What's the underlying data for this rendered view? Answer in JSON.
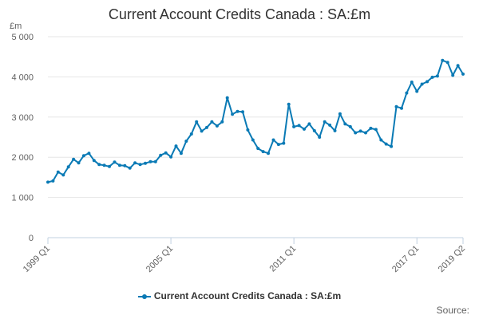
{
  "chart_data": {
    "type": "line",
    "title": "Current Account Credits Canada : SA:£m",
    "unit_label": "£m",
    "source_label": "Source:",
    "y_ticks": [
      "0",
      "1 000",
      "2 000",
      "3 000",
      "4 000",
      "5 000"
    ],
    "ylim": [
      0,
      5000
    ],
    "x_tick_labels": [
      {
        "label": "1999 Q1",
        "index": 0
      },
      {
        "label": "2005 Q1",
        "index": 24
      },
      {
        "label": "2011 Q1",
        "index": 48
      },
      {
        "label": "2017 Q1",
        "index": 72
      },
      {
        "label": "2019 Q2",
        "index": 81
      }
    ],
    "grid": "horizontal",
    "legend_position": "bottom",
    "color": "#0a7ab5",
    "series": [
      {
        "name": "Current Account Credits Canada : SA:£m",
        "x": [
          "1999 Q1",
          "1999 Q2",
          "1999 Q3",
          "1999 Q4",
          "2000 Q1",
          "2000 Q2",
          "2000 Q3",
          "2000 Q4",
          "2001 Q1",
          "2001 Q2",
          "2001 Q3",
          "2001 Q4",
          "2002 Q1",
          "2002 Q2",
          "2002 Q3",
          "2002 Q4",
          "2003 Q1",
          "2003 Q2",
          "2003 Q3",
          "2003 Q4",
          "2004 Q1",
          "2004 Q2",
          "2004 Q3",
          "2004 Q4",
          "2005 Q1",
          "2005 Q2",
          "2005 Q3",
          "2005 Q4",
          "2006 Q1",
          "2006 Q2",
          "2006 Q3",
          "2006 Q4",
          "2007 Q1",
          "2007 Q2",
          "2007 Q3",
          "2007 Q4",
          "2008 Q1",
          "2008 Q2",
          "2008 Q3",
          "2008 Q4",
          "2009 Q1",
          "2009 Q2",
          "2009 Q3",
          "2009 Q4",
          "2010 Q1",
          "2010 Q2",
          "2010 Q3",
          "2010 Q4",
          "2011 Q1",
          "2011 Q2",
          "2011 Q3",
          "2011 Q4",
          "2012 Q1",
          "2012 Q2",
          "2012 Q3",
          "2012 Q4",
          "2013 Q1",
          "2013 Q2",
          "2013 Q3",
          "2013 Q4",
          "2014 Q1",
          "2014 Q2",
          "2014 Q3",
          "2014 Q4",
          "2015 Q1",
          "2015 Q2",
          "2015 Q3",
          "2015 Q4",
          "2016 Q1",
          "2016 Q2",
          "2016 Q3",
          "2016 Q4",
          "2017 Q1",
          "2017 Q2",
          "2017 Q3",
          "2017 Q4",
          "2018 Q1",
          "2018 Q2",
          "2018 Q3",
          "2018 Q4",
          "2019 Q1",
          "2019 Q2"
        ],
        "values": [
          1380,
          1410,
          1630,
          1560,
          1760,
          1950,
          1860,
          2040,
          2100,
          1920,
          1820,
          1800,
          1770,
          1880,
          1800,
          1790,
          1730,
          1860,
          1820,
          1850,
          1890,
          1890,
          2050,
          2110,
          2010,
          2280,
          2100,
          2400,
          2580,
          2880,
          2650,
          2740,
          2880,
          2780,
          2880,
          3480,
          3070,
          3140,
          3130,
          2680,
          2430,
          2220,
          2140,
          2100,
          2430,
          2320,
          2350,
          3320,
          2760,
          2790,
          2700,
          2830,
          2660,
          2500,
          2880,
          2800,
          2660,
          3080,
          2830,
          2760,
          2610,
          2650,
          2610,
          2720,
          2690,
          2430,
          2330,
          2270,
          3260,
          3220,
          3600,
          3870,
          3640,
          3820,
          3880,
          3990,
          4020,
          4410,
          4360,
          4040,
          4280,
          4070
        ]
      }
    ]
  }
}
